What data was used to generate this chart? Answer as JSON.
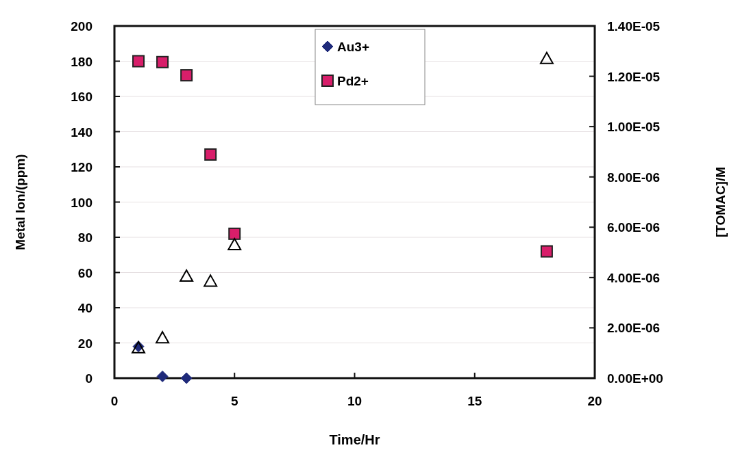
{
  "chart_data": {
    "type": "scatter",
    "xlabel": "Time/Hr",
    "ylabel": "Metal Ion/(ppm)",
    "y2label": "[TOMAC]/M",
    "xlim": [
      0,
      20
    ],
    "xticks": [
      0,
      5,
      10,
      15,
      20
    ],
    "ylim": [
      0,
      200
    ],
    "yticks": [
      0,
      20,
      40,
      60,
      80,
      100,
      120,
      140,
      160,
      180,
      200
    ],
    "y2lim": [
      0,
      1.4e-05
    ],
    "y2ticks": [
      {
        "value": 0,
        "label": "0.00E+00"
      },
      {
        "value": 2e-06,
        "label": "2.00E-06"
      },
      {
        "value": 4e-06,
        "label": "4.00E-06"
      },
      {
        "value": 6e-06,
        "label": "6.00E-06"
      },
      {
        "value": 8e-06,
        "label": "8.00E-06"
      },
      {
        "value": 1e-05,
        "label": "1.00E-05"
      },
      {
        "value": 1.2e-05,
        "label": "1.20E-05"
      },
      {
        "value": 1.4e-05,
        "label": "1.40E-05"
      }
    ],
    "grid": "y",
    "legend": "top",
    "series": [
      {
        "name": "Au3+",
        "color": "#1f2a7a",
        "marker": "diamond",
        "x": [
          1,
          2,
          3
        ],
        "values": [
          18,
          1,
          0
        ]
      },
      {
        "name": "Pd2+",
        "color": "#d81e6a",
        "marker": "square",
        "x": [
          1,
          2,
          3,
          4,
          5,
          18
        ],
        "values": [
          180,
          179.5,
          172,
          127,
          82,
          72
        ]
      },
      {
        "color": "#000000",
        "marker": "triangle",
        "axis": "y2",
        "x": [
          1,
          2,
          3,
          4,
          5,
          18
        ],
        "values": [
          1.2e-06,
          1.6e-06,
          4.05e-06,
          3.85e-06,
          5.3e-06,
          1.27e-05
        ]
      }
    ]
  }
}
